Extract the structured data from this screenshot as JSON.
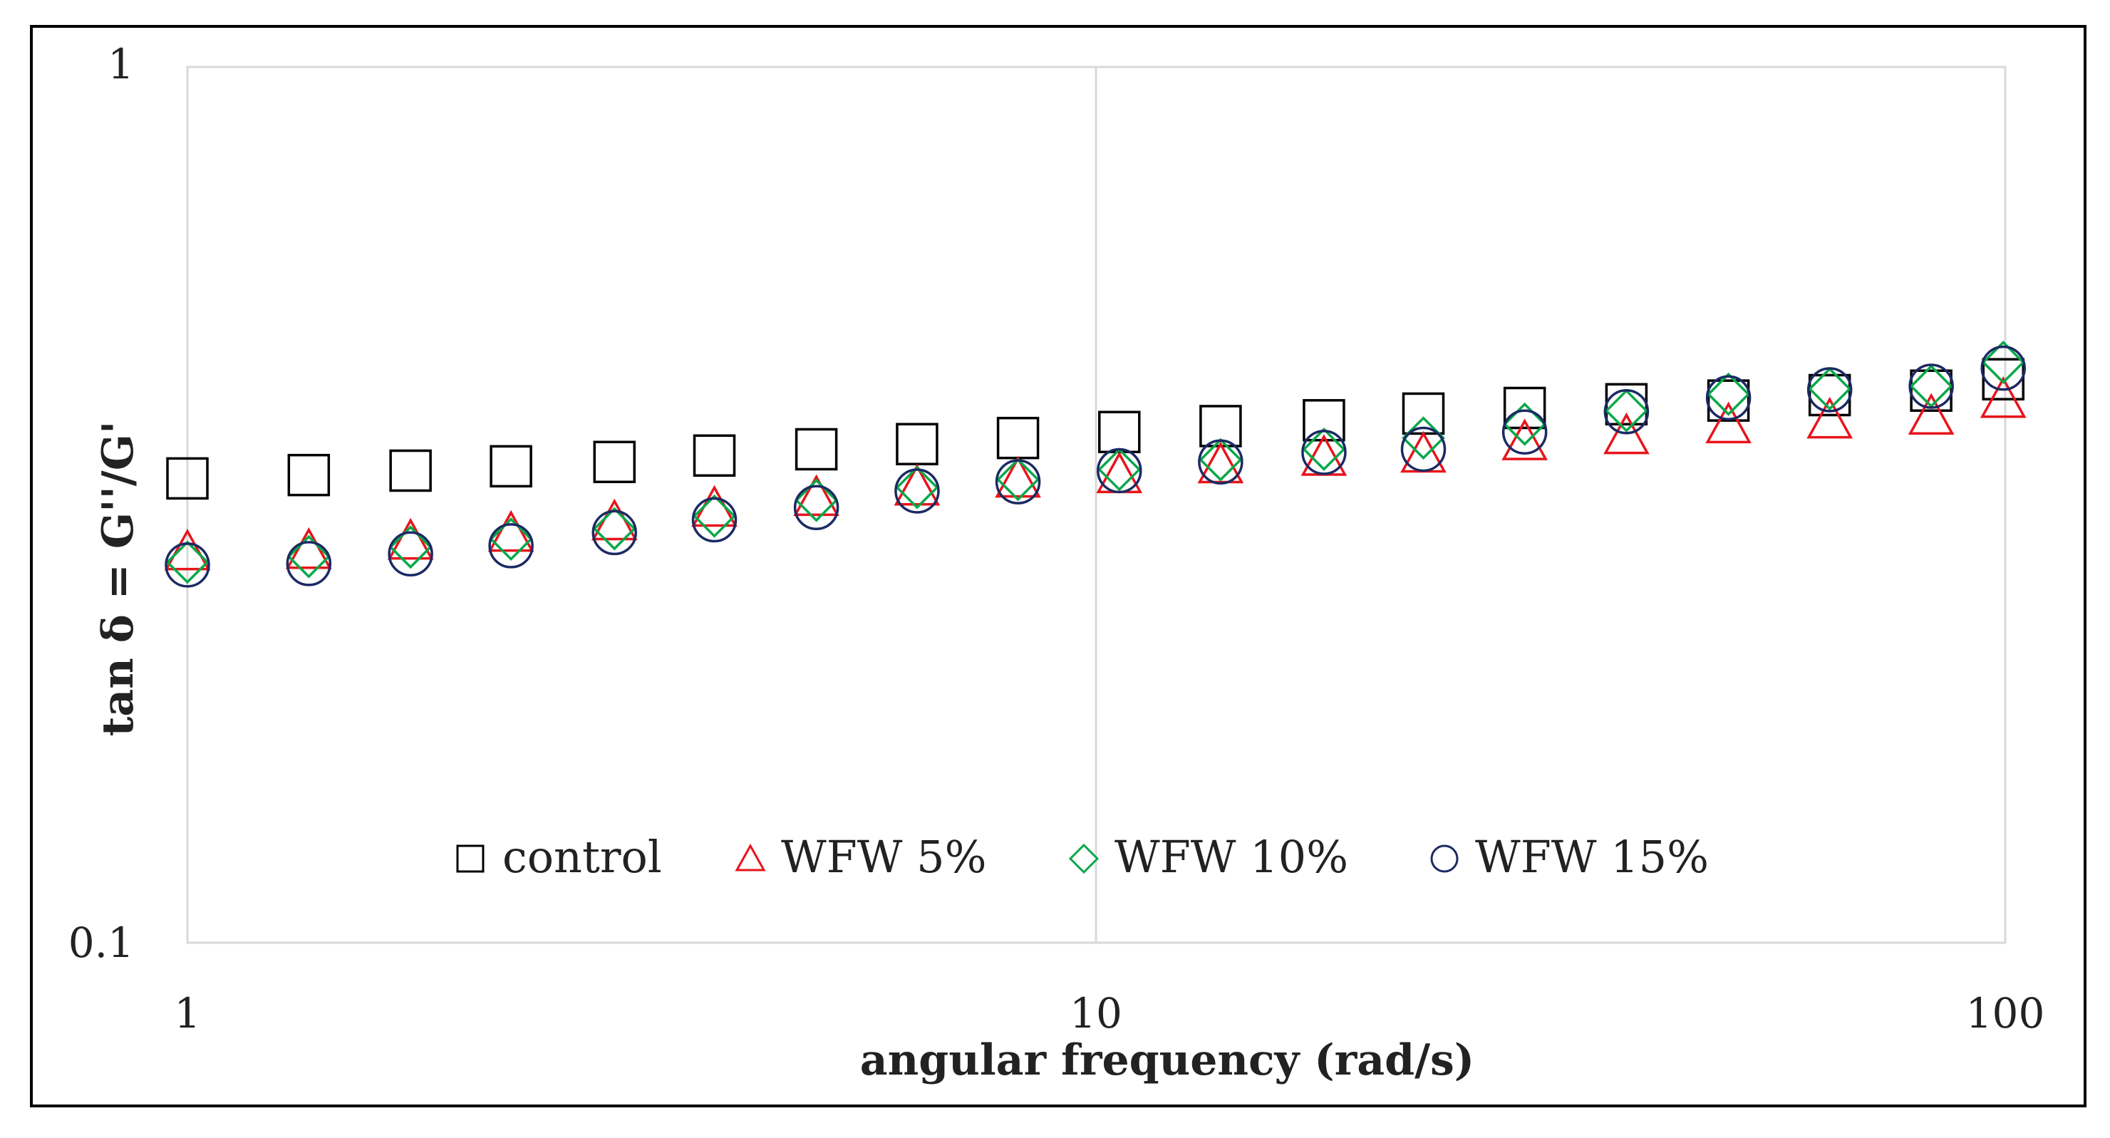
{
  "chart_data": {
    "type": "scatter",
    "title": "",
    "xlabel": "angular frequency (rad/s)",
    "ylabel": "tan δ = G''/G'",
    "xscale": "log",
    "yscale": "log",
    "xlim": [
      1,
      100
    ],
    "ylim": [
      0.1,
      1
    ],
    "x_ticks": [
      "1",
      "10",
      "100"
    ],
    "y_ticks": [
      "0.1",
      "1"
    ],
    "grid": "vertical major gridlines",
    "legend_position": "bottom-center",
    "x": [
      1.0,
      1.36,
      1.76,
      2.27,
      2.95,
      3.8,
      4.92,
      6.35,
      8.2,
      10.6,
      13.7,
      17.8,
      22.9,
      29.6,
      38.3,
      49.6,
      64.1,
      82.9,
      99.5
    ],
    "series": [
      {
        "name": "control",
        "marker": "square",
        "color": "#000000",
        "values": [
          0.339,
          0.342,
          0.346,
          0.35,
          0.354,
          0.36,
          0.366,
          0.371,
          0.377,
          0.383,
          0.389,
          0.395,
          0.402,
          0.408,
          0.412,
          0.416,
          0.422,
          0.427,
          0.44
        ]
      },
      {
        "name": "WFW 5%",
        "marker": "triangle",
        "color": "#e8141b",
        "values": [
          0.28,
          0.281,
          0.288,
          0.294,
          0.303,
          0.314,
          0.323,
          0.332,
          0.339,
          0.343,
          0.352,
          0.359,
          0.362,
          0.374,
          0.38,
          0.391,
          0.396,
          0.4,
          0.418
        ]
      },
      {
        "name": "WFW 10%",
        "marker": "diamond",
        "color": "#0aa84a",
        "values": [
          0.272,
          0.276,
          0.283,
          0.289,
          0.297,
          0.307,
          0.32,
          0.331,
          0.338,
          0.347,
          0.356,
          0.366,
          0.377,
          0.391,
          0.405,
          0.423,
          0.429,
          0.432,
          0.46
        ]
      },
      {
        "name": "WFW 15%",
        "marker": "circle",
        "color": "#1c2a63",
        "values": [
          0.27,
          0.271,
          0.278,
          0.284,
          0.294,
          0.304,
          0.314,
          0.328,
          0.336,
          0.346,
          0.354,
          0.363,
          0.366,
          0.383,
          0.404,
          0.419,
          0.428,
          0.432,
          0.453
        ]
      }
    ]
  }
}
